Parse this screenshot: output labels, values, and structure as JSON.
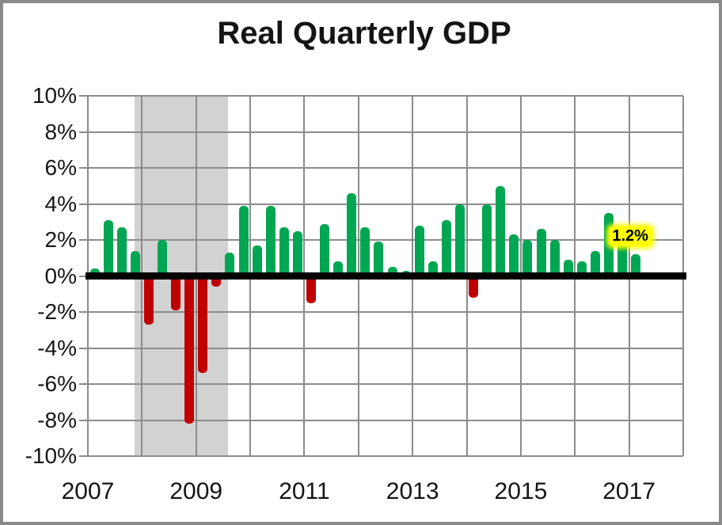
{
  "chart_data": {
    "type": "bar",
    "title": "Real Quarterly GDP",
    "xlabel": "",
    "ylabel": "",
    "ylim": [
      -10,
      10
    ],
    "ytick_step": 2,
    "ytick_labels": [
      "10%",
      "8%",
      "6%",
      "4%",
      "2%",
      "0%",
      "-2%",
      "-4%",
      "-6%",
      "-8%",
      "-10%"
    ],
    "xtick_labels": [
      "2007",
      "2009",
      "2011",
      "2013",
      "2015",
      "2017"
    ],
    "x_range_years": [
      2007,
      2018
    ],
    "grid": "on",
    "quarters": [
      "2007 Q1",
      "2007 Q2",
      "2007 Q3",
      "2007 Q4",
      "2008 Q1",
      "2008 Q2",
      "2008 Q3",
      "2008 Q4",
      "2009 Q1",
      "2009 Q2",
      "2009 Q3",
      "2009 Q4",
      "2010 Q1",
      "2010 Q2",
      "2010 Q3",
      "2010 Q4",
      "2011 Q1",
      "2011 Q2",
      "2011 Q3",
      "2011 Q4",
      "2012 Q1",
      "2012 Q2",
      "2012 Q3",
      "2012 Q4",
      "2013 Q1",
      "2013 Q2",
      "2013 Q3",
      "2013 Q4",
      "2014 Q1",
      "2014 Q2",
      "2014 Q3",
      "2014 Q4",
      "2015 Q1",
      "2015 Q2",
      "2015 Q3",
      "2015 Q4",
      "2016 Q1",
      "2016 Q2",
      "2016 Q3",
      "2016 Q4",
      "2017 Q1"
    ],
    "values": [
      0.4,
      3.1,
      2.7,
      1.4,
      -2.7,
      2.0,
      -1.9,
      -8.2,
      -5.4,
      -0.6,
      1.3,
      3.9,
      1.7,
      3.9,
      2.7,
      2.5,
      -1.5,
      2.9,
      0.8,
      4.6,
      2.7,
      1.9,
      0.5,
      0.3,
      2.8,
      0.8,
      3.1,
      4.0,
      -1.2,
      4.0,
      5.0,
      2.3,
      2.0,
      2.6,
      2.0,
      0.9,
      0.8,
      1.4,
      3.5,
      2.1,
      1.2
    ],
    "positive_color": "#00A651",
    "negative_color": "#C00000",
    "recession_band": {
      "start": 2007.86,
      "end": 2009.59,
      "color": "#D2D2D2"
    },
    "gridline_color": "#8C8C8C",
    "zero_line_color": "#000000",
    "annotation": {
      "text": "1.2%",
      "quarter": "2017 Q1",
      "highlight_color": "#FFFF00"
    }
  }
}
